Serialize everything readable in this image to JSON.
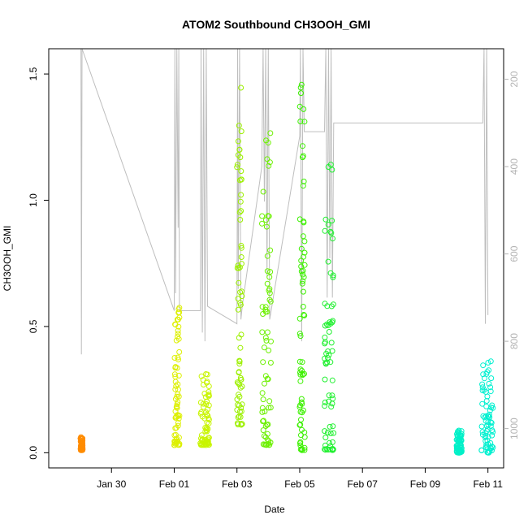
{
  "chart_data": {
    "type": "scatter",
    "title": "ATOM2 Southbound CH3OOH_GMI",
    "xlabel": "Date",
    "ylabel": "CH3OOH_GMI",
    "xlim": [
      "2017-01-28",
      "2017-02-11T12:00"
    ],
    "ylim": [
      -0.06,
      1.6
    ],
    "y2lim": [
      1090,
      130
    ],
    "x_ticks": [
      {
        "value": "2017-01-30",
        "label": "Jan 30"
      },
      {
        "value": "2017-02-01",
        "label": "Feb 01"
      },
      {
        "value": "2017-02-03",
        "label": "Feb 03"
      },
      {
        "value": "2017-02-05",
        "label": "Feb 05"
      },
      {
        "value": "2017-02-07",
        "label": "Feb 07"
      },
      {
        "value": "2017-02-09",
        "label": "Feb 09"
      },
      {
        "value": "2017-02-11",
        "label": "Feb 11"
      }
    ],
    "y_ticks": [
      0.0,
      0.5,
      1.0,
      1.5
    ],
    "y_tick_labels": [
      "0.0",
      "0.5",
      "1.0",
      "1.5"
    ],
    "y2_ticks": [
      200,
      400,
      600,
      800,
      1000
    ],
    "y2_tick_labels": [
      "200",
      "400",
      "600",
      "800",
      "1000"
    ],
    "grid": false,
    "colors": {
      "pressure_line": "#bebebe",
      "axis": "#000000",
      "right_axis": "#b3b3b3"
    },
    "flights": [
      {
        "start": "2017-01-29T00:20",
        "end": "2017-01-29T02:00",
        "ymin": 0.01,
        "ymax": 0.065,
        "color": "#ff8c00"
      },
      {
        "start": "2017-02-01T00:00",
        "end": "2017-02-01T04:00",
        "ymin": 0.03,
        "ymax": 0.58,
        "color": "#ddf000"
      },
      {
        "start": "2017-02-01T20:00",
        "end": "2017-02-02T03:00",
        "ymin": 0.03,
        "ymax": 0.33,
        "color": "#c8f500"
      },
      {
        "start": "2017-02-03T00:00",
        "end": "2017-02-03T04:00",
        "ymin": 0.11,
        "ymax": 1.52,
        "color": "#9cf000"
      },
      {
        "start": "2017-02-03T19:00",
        "end": "2017-02-04T02:00",
        "ymin": 0.03,
        "ymax": 1.27,
        "color": "#6cf000"
      },
      {
        "start": "2017-02-05T00:00",
        "end": "2017-02-05T04:00",
        "ymin": 0.01,
        "ymax": 1.53,
        "color": "#3cf000"
      },
      {
        "start": "2017-02-05T19:00",
        "end": "2017-02-06T02:00",
        "ymin": 0.01,
        "ymax": 1.21,
        "color": "#20f030"
      },
      {
        "start": "2017-02-10T00:00",
        "end": "2017-02-10T04:00",
        "ymin": 0.0,
        "ymax": 0.09,
        "color": "#00f0c8"
      },
      {
        "start": "2017-02-10T19:00",
        "end": "2017-02-11T04:00",
        "ymin": 0.0,
        "ymax": 0.37,
        "color": "#00f0d0"
      }
    ],
    "pressure_profile": [
      [
        "2017-01-29T00:40",
        130
      ],
      [
        "2017-01-29T01:00",
        830
      ],
      [
        "2017-01-29T01:30",
        130
      ],
      [
        "2017-02-01T00:00",
        730
      ],
      [
        "2017-02-01T00:30",
        130
      ],
      [
        "2017-02-01T01:00",
        690
      ],
      [
        "2017-02-01T02:00",
        130
      ],
      [
        "2017-02-01T03:00",
        540
      ],
      [
        "2017-02-01T03:30",
        130
      ],
      [
        "2017-02-01T04:00",
        730
      ],
      [
        "2017-02-01T20:00",
        730
      ],
      [
        "2017-02-01T20:30",
        130
      ],
      [
        "2017-02-01T21:30",
        780
      ],
      [
        "2017-02-01T22:30",
        130
      ],
      [
        "2017-02-01T23:30",
        800
      ],
      [
        "2017-02-02T00:30",
        130
      ],
      [
        "2017-02-02T01:30",
        720
      ],
      [
        "2017-02-03T00:00",
        760
      ],
      [
        "2017-02-03T00:30",
        130
      ],
      [
        "2017-02-03T01:00",
        680
      ],
      [
        "2017-02-03T02:00",
        130
      ],
      [
        "2017-02-03T03:00",
        750
      ],
      [
        "2017-02-03T04:00",
        720
      ],
      [
        "2017-02-03T19:00",
        400
      ],
      [
        "2017-02-03T20:00",
        130
      ],
      [
        "2017-02-03T21:00",
        480
      ],
      [
        "2017-02-03T22:00",
        130
      ],
      [
        "2017-02-03T23:00",
        650
      ],
      [
        "2017-02-04T00:00",
        130
      ],
      [
        "2017-02-04T01:00",
        750
      ],
      [
        "2017-02-05T00:00",
        330
      ],
      [
        "2017-02-05T00:30",
        130
      ],
      [
        "2017-02-05T01:30",
        800
      ],
      [
        "2017-02-05T02:30",
        130
      ],
      [
        "2017-02-05T03:30",
        320
      ],
      [
        "2017-02-05T19:00",
        320
      ],
      [
        "2017-02-05T20:00",
        130
      ],
      [
        "2017-02-05T21:00",
        700
      ],
      [
        "2017-02-05T22:00",
        130
      ],
      [
        "2017-02-05T23:00",
        610
      ],
      [
        "2017-02-06T00:00",
        130
      ],
      [
        "2017-02-06T01:00",
        700
      ],
      [
        "2017-02-06T02:00",
        300
      ],
      [
        "2017-02-10T20:00",
        300
      ],
      [
        "2017-02-10T21:00",
        130
      ],
      [
        "2017-02-10T22:00",
        760
      ],
      [
        "2017-02-10T23:00",
        130
      ],
      [
        "2017-02-11T00:00",
        740
      ]
    ]
  }
}
